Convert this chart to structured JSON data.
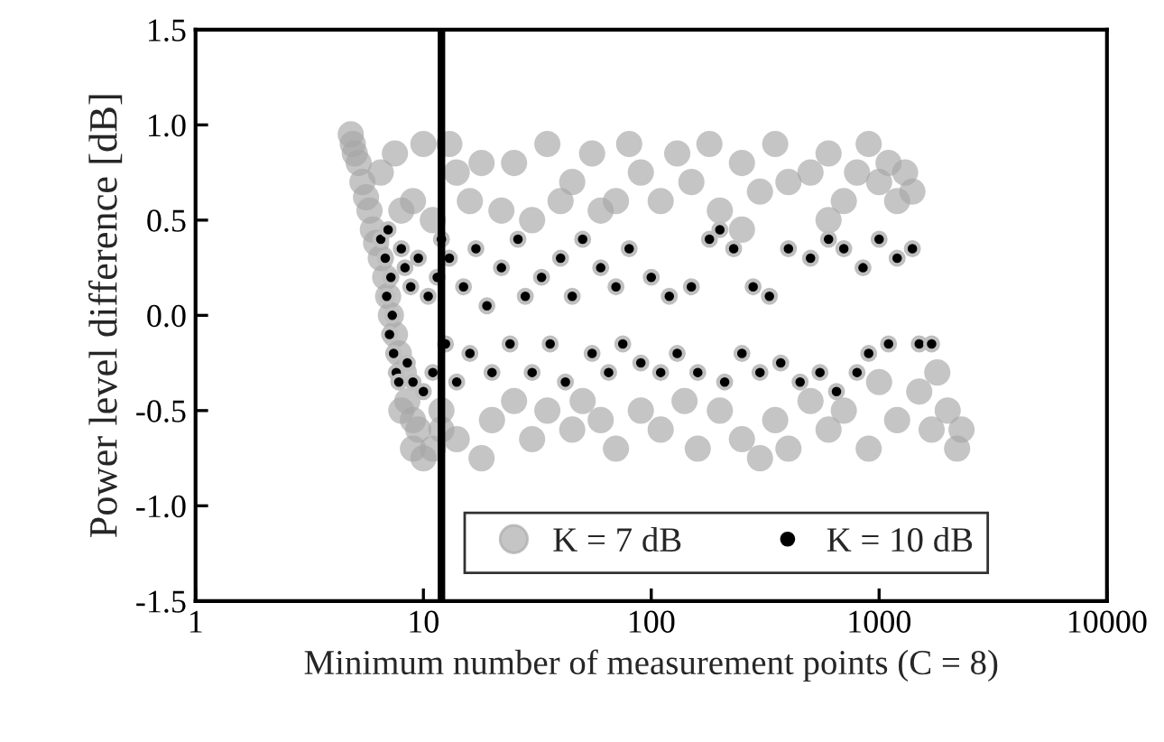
{
  "chart_data": {
    "type": "scatter",
    "xlabel": "Minimum number of measurement points (C = 8)",
    "ylabel": "Power level difference [dB]",
    "log": "x",
    "xlim": [
      1,
      10000
    ],
    "xticks": [
      1,
      10,
      100,
      1000,
      10000
    ],
    "ylim": [
      -1.5,
      1.5
    ],
    "yticks": [
      {
        "value": -1.5,
        "label": "-1.5"
      },
      {
        "value": -1.0,
        "label": "-1.0"
      },
      {
        "value": -0.5,
        "label": "-0.5"
      },
      {
        "value": 0,
        "label": "0.0"
      },
      {
        "value": 0.5,
        "label": "0.5"
      },
      {
        "value": 1.0,
        "label": "1.0"
      },
      {
        "value": 1.5,
        "label": "1.5"
      }
    ],
    "grid": false,
    "legend": "bottom right",
    "marker": "circle",
    "ref_lines": [
      {
        "axis": "x",
        "value": 12,
        "color": "#000000"
      }
    ],
    "series": [
      {
        "name": "K = 7 dB",
        "color": "#a6a6a6",
        "x": [
          4.8,
          4.9,
          5.0,
          5.2,
          5.4,
          5.6,
          5.8,
          6.0,
          6.2,
          6.5,
          6.8,
          7,
          7.2,
          7.5,
          7.8,
          8.2,
          8.5,
          9,
          9.5,
          10,
          11,
          12,
          6.5,
          7.5,
          8,
          9,
          10,
          11,
          13,
          14,
          16,
          18,
          22,
          25,
          30,
          35,
          40,
          45,
          55,
          60,
          70,
          80,
          90,
          110,
          130,
          150,
          180,
          200,
          250,
          300,
          350,
          400,
          500,
          600,
          700,
          800,
          900,
          1000,
          1100,
          1200,
          1300,
          1400,
          600,
          250,
          8,
          9,
          12,
          14,
          18,
          20,
          25,
          30,
          35,
          45,
          50,
          60,
          70,
          90,
          110,
          140,
          160,
          200,
          250,
          300,
          350,
          400,
          500,
          600,
          700,
          900,
          1000,
          1200,
          1500,
          1700,
          2000,
          2200,
          1800,
          2300
        ],
        "values": [
          0.95,
          0.9,
          0.85,
          0.8,
          0.7,
          0.62,
          0.55,
          0.45,
          0.38,
          0.3,
          0.2,
          0.1,
          0.0,
          -0.1,
          -0.2,
          -0.3,
          -0.45,
          -0.55,
          -0.6,
          -0.75,
          -0.7,
          -0.6,
          0.75,
          0.85,
          0.55,
          0.6,
          0.9,
          0.5,
          0.9,
          0.75,
          0.6,
          0.8,
          0.55,
          0.8,
          0.5,
          0.9,
          0.6,
          0.7,
          0.85,
          0.55,
          0.6,
          0.9,
          0.75,
          0.6,
          0.85,
          0.7,
          0.9,
          0.55,
          0.8,
          0.65,
          0.9,
          0.7,
          0.75,
          0.85,
          0.6,
          0.75,
          0.9,
          0.7,
          0.8,
          0.6,
          0.75,
          0.65,
          0.5,
          0.45,
          -0.5,
          -0.7,
          -0.5,
          -0.65,
          -0.75,
          -0.55,
          -0.45,
          -0.65,
          -0.5,
          -0.6,
          -0.45,
          -0.55,
          -0.7,
          -0.5,
          -0.6,
          -0.45,
          -0.7,
          -0.5,
          -0.65,
          -0.75,
          -0.55,
          -0.7,
          -0.45,
          -0.6,
          -0.5,
          -0.7,
          -0.35,
          -0.55,
          -0.4,
          -0.6,
          -0.5,
          -0.7,
          -0.3,
          -0.6
        ]
      },
      {
        "name": "K = 10 dB",
        "color": "#000000",
        "x": [
          6.5,
          6.8,
          7,
          7.2,
          6.9,
          7.3,
          7.1,
          7.4,
          7.6,
          7.8,
          8,
          8.3,
          8.5,
          8.8,
          9,
          9.5,
          10,
          10.5,
          11,
          11.5,
          12,
          12.5,
          13,
          14,
          15,
          16,
          17,
          19,
          20,
          22,
          24,
          26,
          28,
          30,
          33,
          36,
          40,
          42,
          45,
          50,
          55,
          60,
          65,
          70,
          75,
          80,
          90,
          100,
          110,
          120,
          130,
          150,
          160,
          180,
          200,
          210,
          230,
          250,
          280,
          300,
          330,
          370,
          400,
          450,
          500,
          550,
          600,
          650,
          700,
          800,
          850,
          900,
          1000,
          1100,
          1200,
          1400,
          1500,
          1700
        ],
        "values": [
          0.4,
          0.3,
          0.45,
          0.2,
          0.1,
          0.0,
          -0.1,
          -0.2,
          -0.3,
          -0.35,
          0.35,
          0.25,
          -0.25,
          0.15,
          -0.35,
          0.3,
          -0.4,
          0.1,
          -0.3,
          0.2,
          0.4,
          -0.15,
          0.3,
          -0.35,
          0.15,
          -0.2,
          0.35,
          0.05,
          -0.3,
          0.25,
          -0.15,
          0.4,
          0.1,
          -0.3,
          0.2,
          -0.15,
          0.3,
          -0.35,
          0.1,
          0.4,
          -0.2,
          0.25,
          -0.3,
          0.15,
          -0.15,
          0.35,
          -0.25,
          0.2,
          -0.3,
          0.1,
          -0.2,
          0.15,
          -0.3,
          0.4,
          0.45,
          -0.35,
          0.35,
          -0.2,
          0.15,
          -0.3,
          0.1,
          -0.25,
          0.35,
          -0.35,
          0.3,
          -0.3,
          0.4,
          -0.4,
          0.35,
          -0.3,
          0.25,
          -0.2,
          0.4,
          -0.15,
          0.3,
          0.35,
          -0.15,
          -0.15
        ]
      }
    ]
  }
}
